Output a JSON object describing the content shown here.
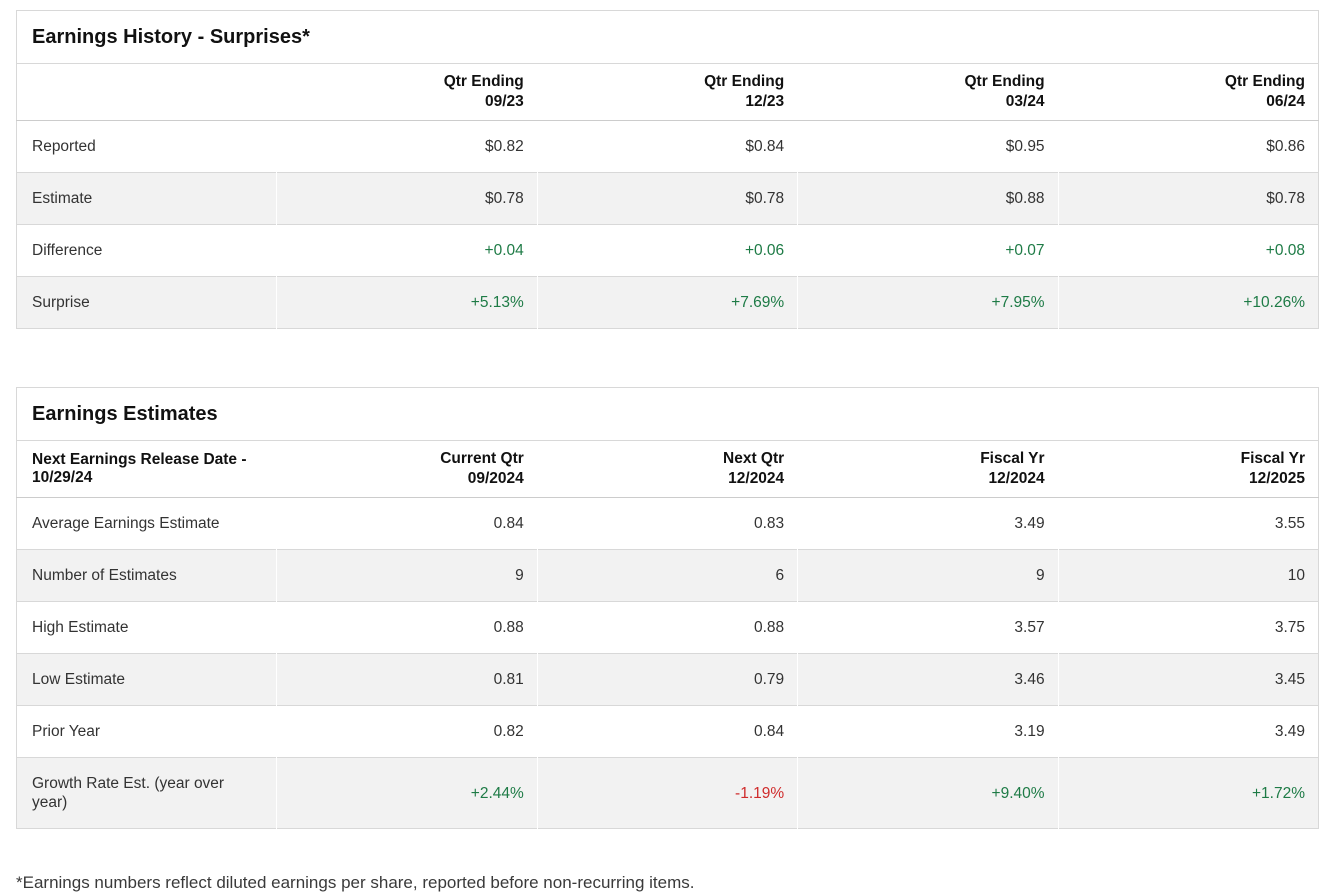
{
  "colors": {
    "positive": "#1e7b46",
    "negative": "#cf2b2b",
    "stripe": "#f2f2f2",
    "border": "#d8d8d8"
  },
  "earnings_history": {
    "title": "Earnings History - Surprises*",
    "columns": [
      {
        "line1": "Qtr Ending",
        "line2": "09/23"
      },
      {
        "line1": "Qtr Ending",
        "line2": "12/23"
      },
      {
        "line1": "Qtr Ending",
        "line2": "03/24"
      },
      {
        "line1": "Qtr Ending",
        "line2": "06/24"
      }
    ],
    "rows": [
      {
        "label": "Reported",
        "values": [
          "$0.82",
          "$0.84",
          "$0.95",
          "$0.86"
        ]
      },
      {
        "label": "Estimate",
        "values": [
          "$0.78",
          "$0.78",
          "$0.88",
          "$0.78"
        ]
      },
      {
        "label": "Difference",
        "values": [
          "+0.04",
          "+0.06",
          "+0.07",
          "+0.08"
        ],
        "value_colors": [
          "pos",
          "pos",
          "pos",
          "pos"
        ]
      },
      {
        "label": "Surprise",
        "values": [
          "+5.13%",
          "+7.69%",
          "+7.95%",
          "+10.26%"
        ],
        "value_colors": [
          "pos",
          "pos",
          "pos",
          "pos"
        ]
      }
    ]
  },
  "earnings_estimates": {
    "title": "Earnings Estimates",
    "header_label": "Next Earnings Release Date - 10/29/24",
    "columns": [
      {
        "line1": "Current Qtr",
        "line2": "09/2024"
      },
      {
        "line1": "Next Qtr",
        "line2": "12/2024"
      },
      {
        "line1": "Fiscal Yr",
        "line2": "12/2024"
      },
      {
        "line1": "Fiscal Yr",
        "line2": "12/2025"
      }
    ],
    "rows": [
      {
        "label": "Average Earnings Estimate",
        "values": [
          "0.84",
          "0.83",
          "3.49",
          "3.55"
        ]
      },
      {
        "label": "Number of Estimates",
        "values": [
          "9",
          "6",
          "9",
          "10"
        ]
      },
      {
        "label": "High Estimate",
        "values": [
          "0.88",
          "0.88",
          "3.57",
          "3.75"
        ]
      },
      {
        "label": "Low Estimate",
        "values": [
          "0.81",
          "0.79",
          "3.46",
          "3.45"
        ]
      },
      {
        "label": "Prior Year",
        "values": [
          "0.82",
          "0.84",
          "3.19",
          "3.49"
        ]
      },
      {
        "label": "Growth Rate Est. (year over year)",
        "values": [
          "+2.44%",
          "-1.19%",
          "+9.40%",
          "+1.72%"
        ],
        "value_colors": [
          "pos",
          "neg",
          "pos",
          "pos"
        ]
      }
    ]
  },
  "footnote": "*Earnings numbers reflect diluted earnings per share, reported before non-recurring items."
}
